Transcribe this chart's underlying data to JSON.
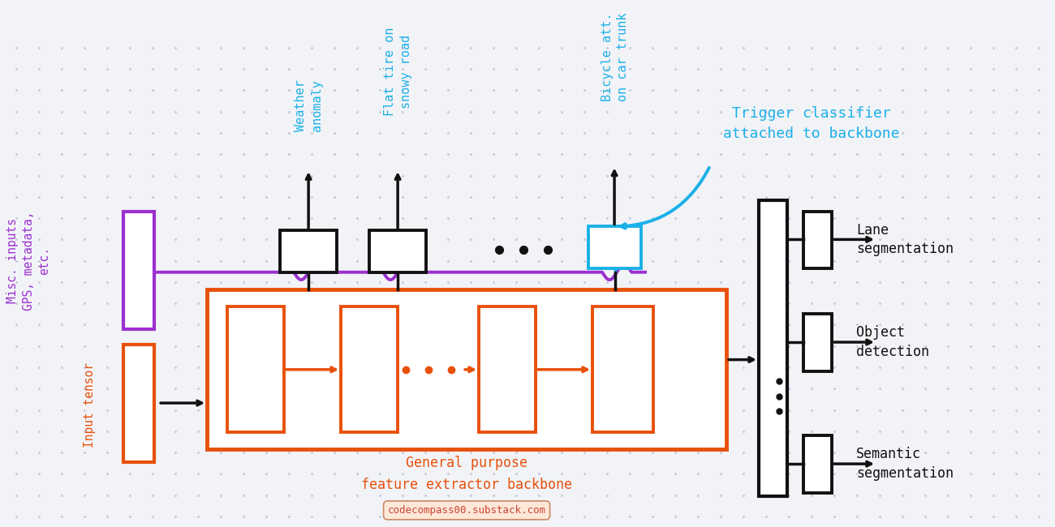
{
  "bg_color": "#f2f3f7",
  "dot_color": "#c8c8d8",
  "orange": "#e8500a",
  "purple": "#9b30d0",
  "blue": "#1ab0e8",
  "black": "#111111",
  "misc_label": "Misc. inputs\nGPS, metadata,\netc.",
  "input_label": "Input tensor",
  "backbone_label": "General purpose\nfeature extractor backbone",
  "trigger_label": "Trigger classifier\nattached to backbone",
  "weather_label": "Weather\nanomaly",
  "flat_label": "Flat tire on\nsnowy road",
  "bicycle_label": "Bicycle att.\non car trunk",
  "lane_label": "Lane\nsegmentation",
  "object_label": "Object\ndetection",
  "semantic_label": "Semantic\nsegmentation",
  "substack": "codecompass00.substack.com"
}
